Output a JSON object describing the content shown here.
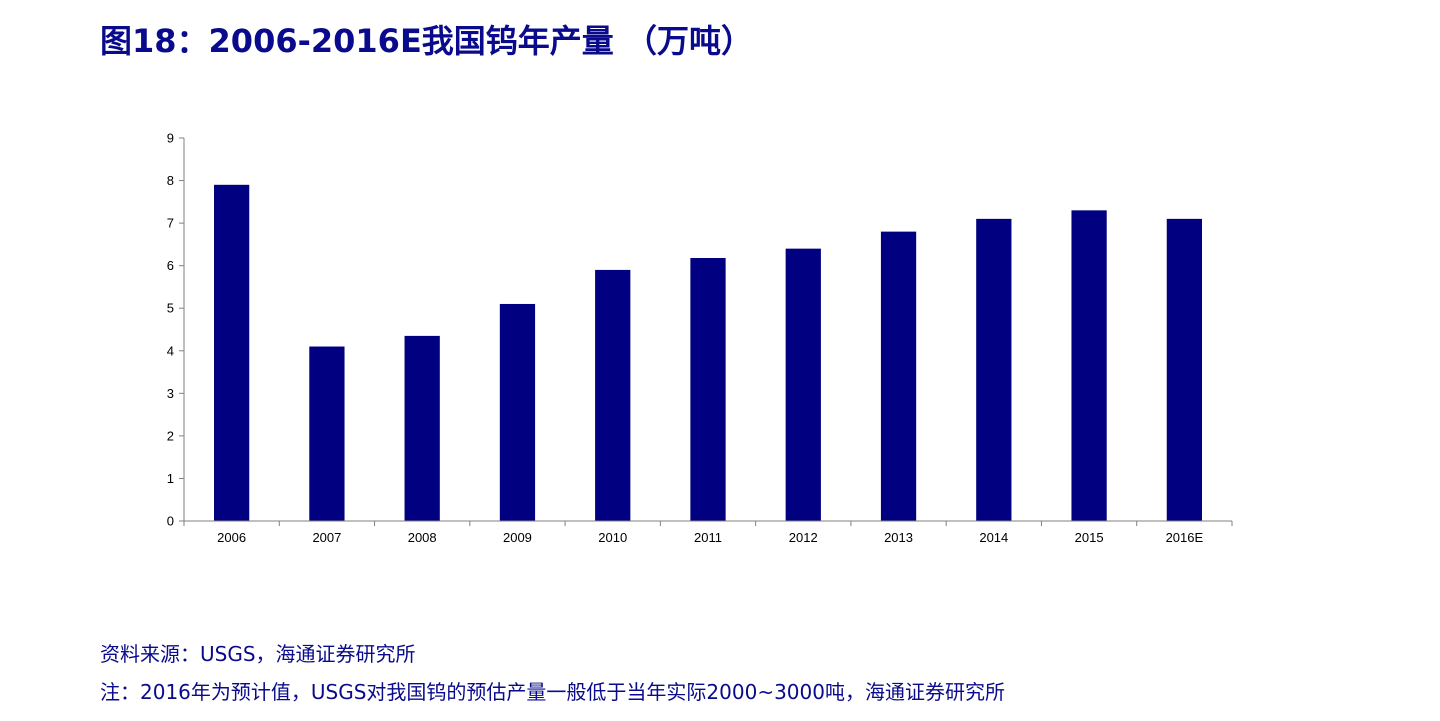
{
  "title": "图18：2006-2016E我国钨年产量 （万吨）",
  "source_note": "资料来源：USGS，海通证券研究所",
  "footnote": "注：2016年为预计值，USGS对我国钨的预估产量一般低于当年实际2000~3000吨，海通证券研究所",
  "colors": {
    "bar": "#000080",
    "title": "#0a0a8c",
    "axis": "#808080"
  },
  "chart_data": {
    "type": "bar",
    "title": "图18：2006-2016E我国钨年产量 （万吨）",
    "xlabel": "",
    "ylabel": "",
    "categories": [
      "2006",
      "2007",
      "2008",
      "2009",
      "2010",
      "2011",
      "2012",
      "2013",
      "2014",
      "2015",
      "2016E"
    ],
    "values": [
      7.9,
      4.1,
      4.35,
      5.1,
      5.9,
      6.18,
      6.4,
      6.8,
      7.1,
      7.3,
      7.1
    ],
    "ylim": [
      0,
      9
    ],
    "yticks": [
      "0",
      "1",
      "2",
      "3",
      "4",
      "5",
      "6",
      "7",
      "8",
      "9"
    ],
    "grid": false,
    "legend": "none"
  }
}
